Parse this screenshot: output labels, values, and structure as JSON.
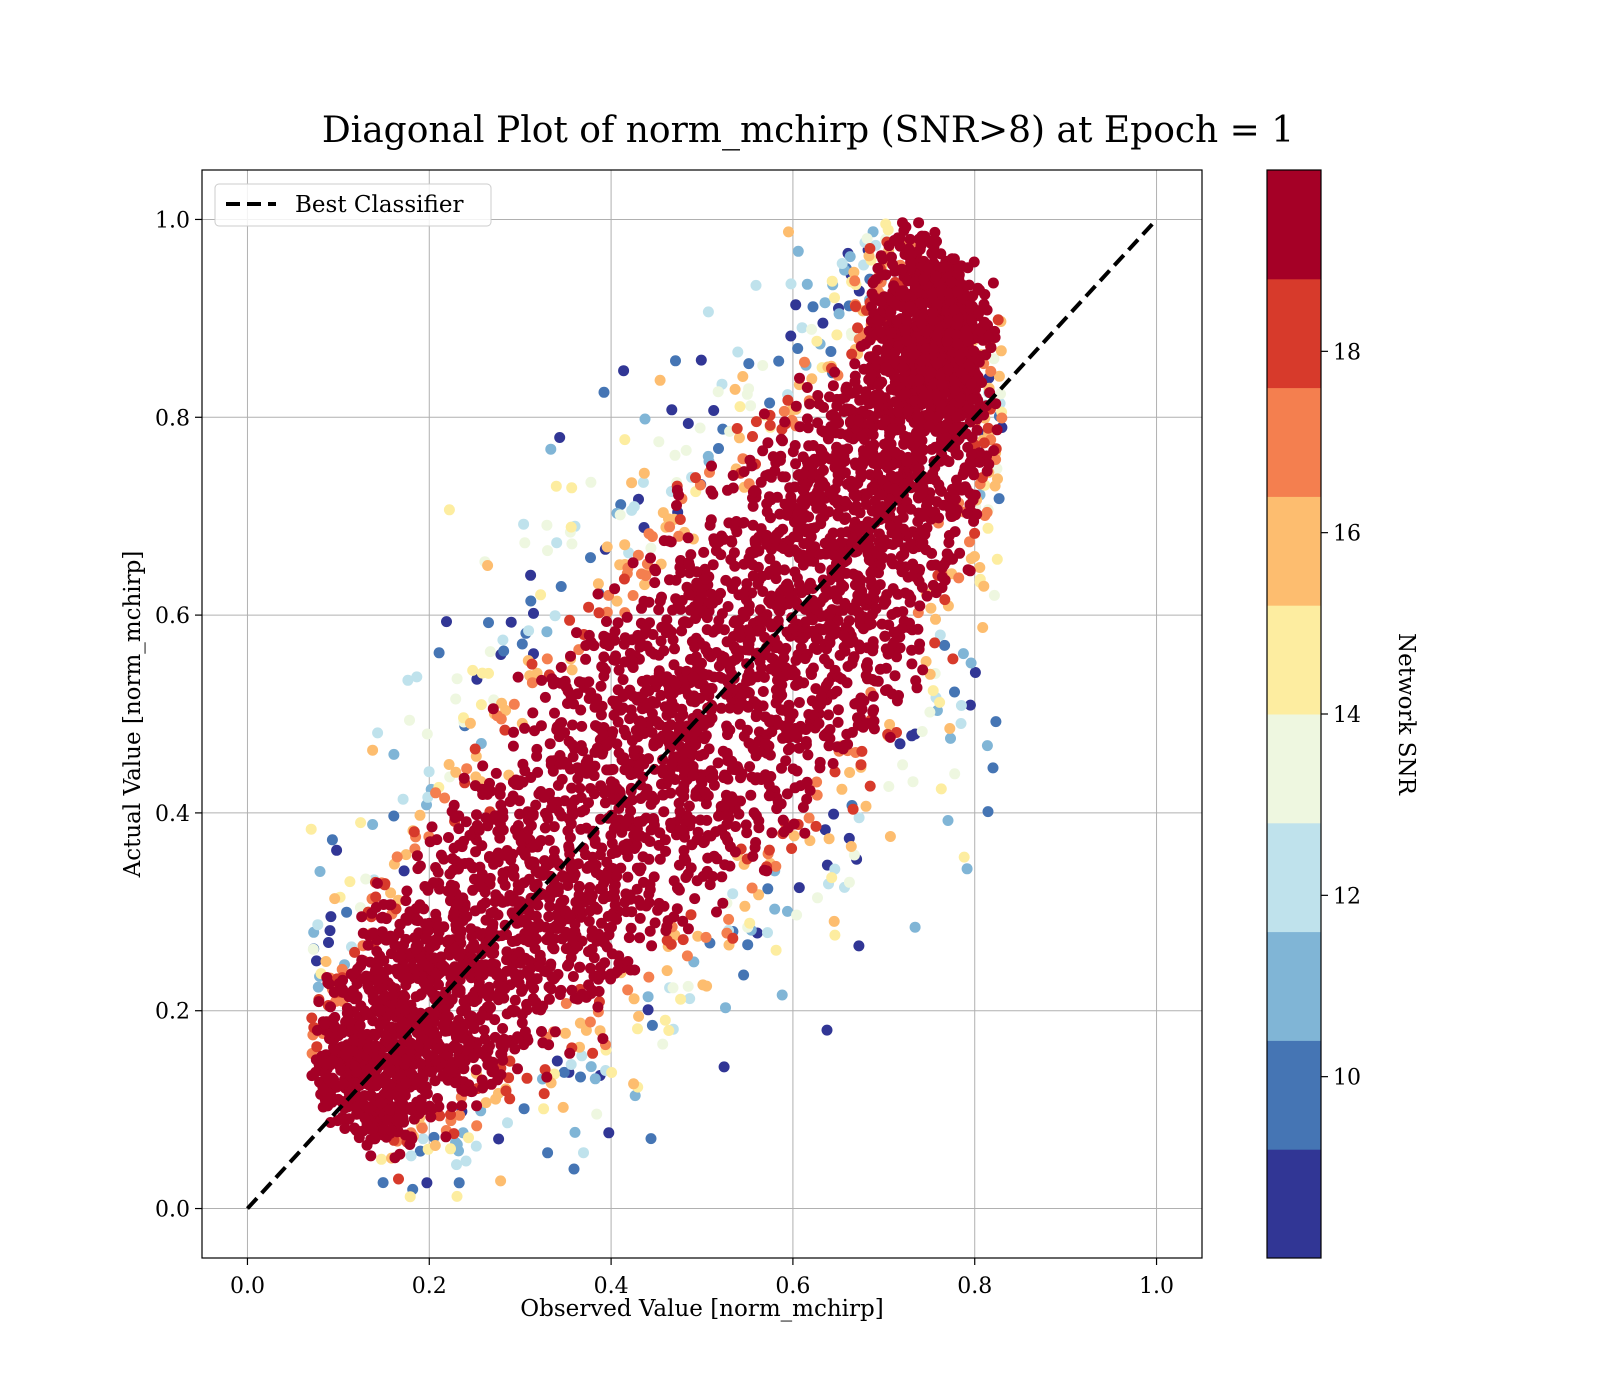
{
  "chart_data": {
    "type": "scatter",
    "title": "Diagonal Plot of norm_mchirp (SNR>8) at Epoch = 1",
    "xlabel": "Observed Value [norm_mchirp]",
    "ylabel": "Actual Value [norm_mchirp]",
    "xlim": [
      -0.05,
      1.05
    ],
    "ylim": [
      -0.05,
      1.05
    ],
    "xticks": [
      "0.0",
      "0.2",
      "0.4",
      "0.6",
      "0.8",
      "1.0"
    ],
    "yticks": [
      "0.0",
      "0.2",
      "0.4",
      "0.6",
      "0.8",
      "1.0"
    ],
    "grid": true,
    "legend": {
      "placement": "upper-left",
      "entries": [
        {
          "label": "Best Classifier",
          "style": "black dashed line"
        }
      ]
    },
    "reference_line": {
      "name": "Best Classifier",
      "x": [
        0.0,
        1.0
      ],
      "y": [
        0.0,
        1.0
      ],
      "color": "#000000"
    },
    "colorbar": {
      "label": "Network SNR",
      "range": [
        8,
        20
      ],
      "ticks": [
        "10",
        "12",
        "14",
        "16",
        "18"
      ],
      "levels": [
        {
          "from": 8,
          "to": 9.2,
          "color": "#313695"
        },
        {
          "from": 9.2,
          "to": 10.4,
          "color": "#4575b4"
        },
        {
          "from": 10.4,
          "to": 11.6,
          "color": "#80b5d6"
        },
        {
          "from": 11.6,
          "to": 12.8,
          "color": "#bfe2ec"
        },
        {
          "from": 12.8,
          "to": 14.0,
          "color": "#eef7e0"
        },
        {
          "from": 14.0,
          "to": 15.2,
          "color": "#fdeda0"
        },
        {
          "from": 15.2,
          "to": 16.4,
          "color": "#fdbd6f"
        },
        {
          "from": 16.4,
          "to": 17.6,
          "color": "#f47f4f"
        },
        {
          "from": 17.6,
          "to": 18.8,
          "color": "#d73a2b"
        },
        {
          "from": 18.8,
          "to": 20,
          "color": "#a50026"
        }
      ]
    },
    "point_cloud": {
      "spine": [
        {
          "x": 0.1,
          "y": 0.1,
          "spread": 0.05
        },
        {
          "x": 0.25,
          "y": 0.25,
          "spread": 0.1
        },
        {
          "x": 0.45,
          "y": 0.45,
          "spread": 0.12
        },
        {
          "x": 0.62,
          "y": 0.62,
          "spread": 0.12
        },
        {
          "x": 0.74,
          "y": 0.8,
          "spread": 0.08
        },
        {
          "x": 0.77,
          "y": 0.95,
          "spread": 0.05
        }
      ],
      "axis_extent": {
        "x": [
          0.07,
          0.83
        ],
        "y": [
          0.0,
          1.0
        ]
      },
      "high_snr_fraction": 0.85,
      "low_snr_outliers": true
    }
  }
}
